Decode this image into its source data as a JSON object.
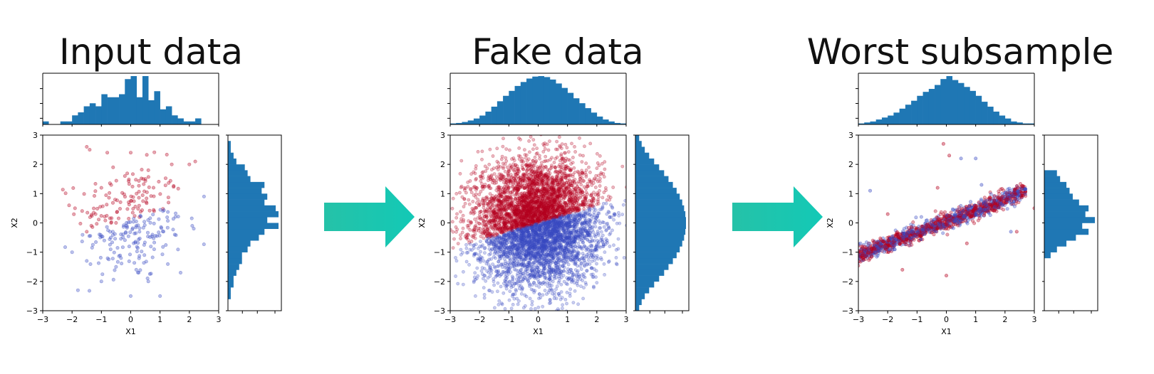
{
  "colors": {
    "bar": "#1f77b4",
    "class_a": "#b5001f",
    "class_b": "#3a4bc2",
    "arrow_start": "#25c2a8",
    "arrow_end": "#13c9b6"
  },
  "chart_data": [
    {
      "type": "scatter",
      "title": "Input data",
      "xlabel": "X1",
      "ylabel": "X2",
      "xlim": [
        -3,
        3
      ],
      "ylim": [
        -3,
        3
      ],
      "xticks": [
        "−3",
        "−2",
        "−1",
        "0",
        "1",
        "2",
        "3"
      ],
      "yticks": [
        "−3",
        "−2",
        "−1",
        "0",
        "1",
        "2",
        "3"
      ],
      "marginals": "histograms of X1 (top) and X2 (right)",
      "series": [
        {
          "color": "#b5001f",
          "distribution": "upper-left half, N=150",
          "values": [
            [
              -1.5,
              2.6
            ],
            [
              -1.4,
              2.5
            ],
            [
              -0.8,
              2.4
            ],
            [
              0,
              2.4
            ],
            [
              -0.6,
              1.9
            ],
            [
              0.6,
              1.8
            ],
            [
              1.4,
              2.0
            ],
            [
              2.2,
              2.1
            ],
            [
              2.0,
              2.0
            ],
            [
              -0.2,
              1.6
            ],
            [
              0.5,
              1.5
            ],
            [
              -1.0,
              1.2
            ],
            [
              0.2,
              1.0
            ],
            [
              -2.1,
              0.6
            ],
            [
              -1.9,
              0.5
            ],
            [
              -1.2,
              0.3
            ],
            [
              0.8,
              0.4
            ],
            [
              -1.5,
              -0.3
            ],
            [
              -0.5,
              0.0
            ],
            [
              0.3,
              0.2
            ]
          ]
        },
        {
          "color": "#3a4bc2",
          "distribution": "lower-right half, N=150",
          "values": [
            [
              -2.0,
              -1.0
            ],
            [
              -1.8,
              -2.3
            ],
            [
              -1.5,
              -1.3
            ],
            [
              -0.9,
              -0.6
            ],
            [
              -0.5,
              -1.5
            ],
            [
              0.0,
              -2.5
            ],
            [
              0.3,
              -0.3
            ],
            [
              0.8,
              -0.9
            ],
            [
              1.1,
              0.4
            ],
            [
              1.5,
              -0.4
            ],
            [
              1.7,
              -1.7
            ],
            [
              2.5,
              0.9
            ],
            [
              2.1,
              -0.1
            ],
            [
              -1.0,
              -2.0
            ],
            [
              0.6,
              -2.0
            ],
            [
              1.0,
              -2.5
            ]
          ]
        }
      ],
      "hist_x": [
        1,
        0,
        0,
        1,
        1,
        3,
        4,
        6,
        7,
        6,
        10,
        9,
        9,
        10,
        15,
        16,
        9,
        16,
        8,
        11,
        5,
        6,
        3,
        2,
        1,
        1,
        2,
        0,
        0,
        0
      ],
      "hist_y": [
        0,
        0,
        1,
        1,
        2,
        2,
        3,
        4,
        5,
        5,
        7,
        8,
        11,
        13,
        18,
        14,
        18,
        17,
        13,
        14,
        12,
        13,
        8,
        7,
        6,
        3,
        2,
        1,
        1,
        0
      ]
    },
    {
      "type": "scatter",
      "title": "Fake data",
      "xlabel": "X1",
      "ylabel": "X2",
      "xlim": [
        -3,
        3
      ],
      "ylim": [
        -3,
        3
      ],
      "xticks": [
        "−3",
        "−2",
        "−1",
        "0",
        "1",
        "2",
        "3"
      ],
      "yticks": [
        "−3",
        "−2",
        "−1",
        "0",
        "1",
        "2",
        "3"
      ],
      "series": [
        {
          "color": "#b5001f",
          "distribution": "dense cloud, upper-left half, N≈20000"
        },
        {
          "color": "#3a4bc2",
          "distribution": "dense cloud, lower-right half, N≈20000"
        }
      ],
      "hist_x": [
        2,
        3,
        5,
        8,
        12,
        18,
        26,
        36,
        47,
        58,
        68,
        78,
        86,
        93,
        97,
        98,
        96,
        91,
        83,
        74,
        64,
        53,
        43,
        33,
        24,
        16,
        10,
        6,
        3,
        2
      ],
      "hist_y": [
        6,
        10,
        15,
        22,
        30,
        38,
        46,
        53,
        60,
        66,
        71,
        75,
        78,
        80,
        81,
        81,
        80,
        78,
        75,
        71,
        66,
        60,
        53,
        46,
        38,
        30,
        22,
        15,
        10,
        6
      ]
    },
    {
      "type": "scatter",
      "title": "Worst subsample",
      "xlabel": "X1",
      "ylabel": "X2",
      "xlim": [
        -3,
        3
      ],
      "ylim": [
        -3,
        3
      ],
      "xticks": [
        "−3",
        "−2",
        "−1",
        "0",
        "1",
        "2",
        "3"
      ],
      "yticks": [
        "−3",
        "−2",
        "−1",
        "0",
        "1",
        "2",
        "3"
      ],
      "series": [
        {
          "color": "#b5001f",
          "distribution": "narrow diagonal band from (-3,-1) to (2.5,1.2)"
        },
        {
          "color": "#3a4bc2",
          "distribution": "narrow diagonal band from (-3,-1) to (2.5,1.2)"
        }
      ],
      "hist_x": [
        1,
        2,
        3,
        5,
        7,
        9,
        12,
        16,
        20,
        24,
        29,
        33,
        36,
        40,
        46,
        49,
        45,
        42,
        38,
        34,
        29,
        23,
        18,
        13,
        9,
        6,
        3,
        2,
        1,
        1
      ],
      "hist_y": [
        0,
        0,
        0,
        0,
        0,
        0,
        0,
        0,
        0,
        2,
        4,
        7,
        10,
        14,
        12,
        16,
        13,
        14,
        11,
        9,
        8,
        7,
        5,
        4,
        0,
        0,
        0,
        0,
        0,
        0
      ]
    }
  ]
}
